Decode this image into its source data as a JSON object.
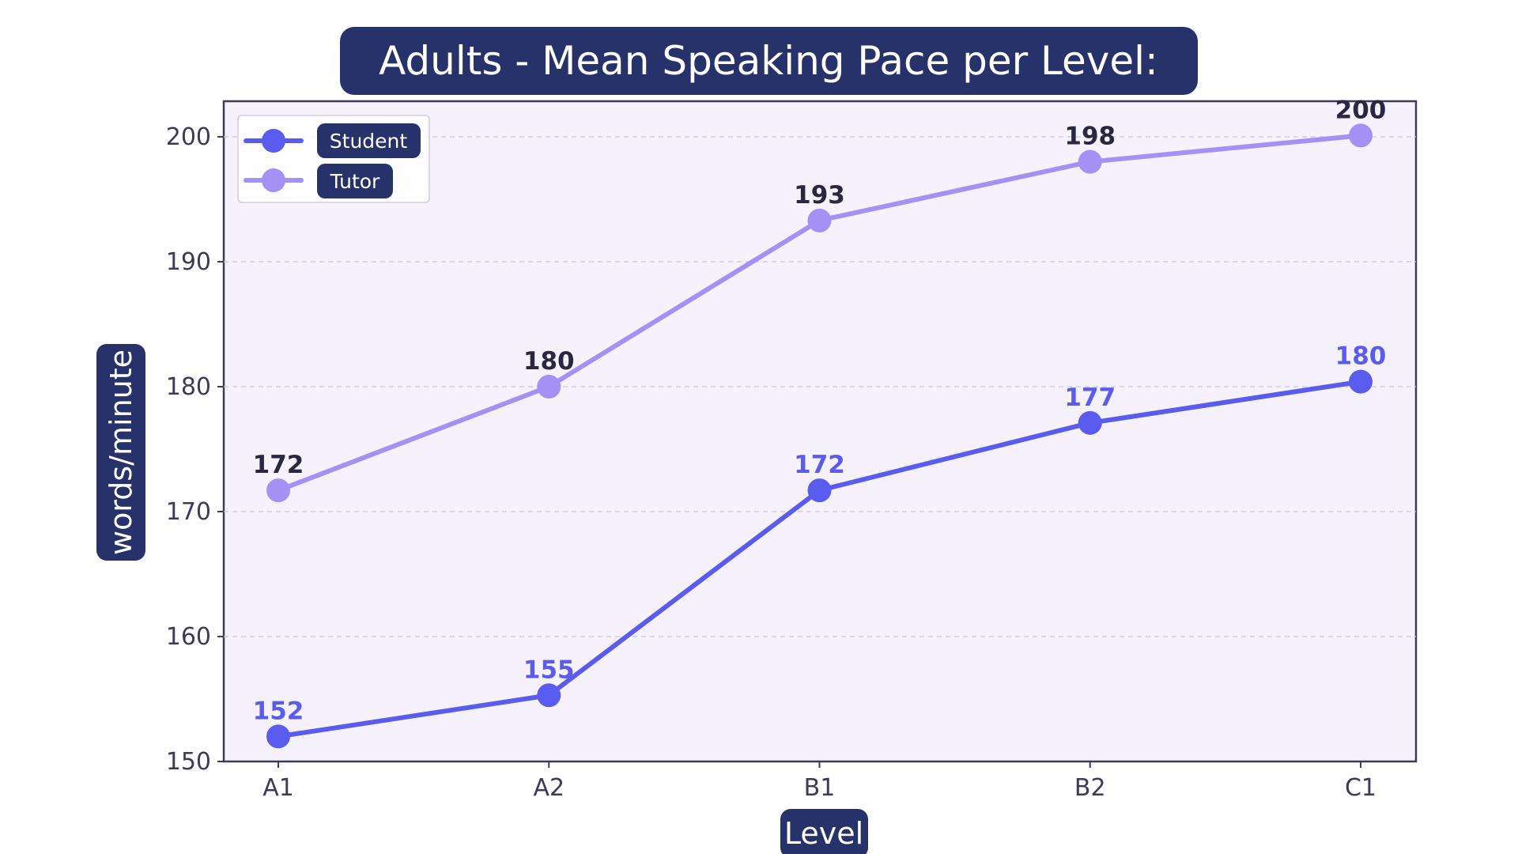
{
  "chart_data": {
    "type": "line",
    "title": "Adults - Mean Speaking Pace per Level:",
    "xlabel": "Level",
    "ylabel": "words/minute",
    "categories": [
      "A1",
      "A2",
      "B1",
      "B2",
      "C1"
    ],
    "ylim": [
      150,
      201
    ],
    "yticks": [
      150,
      160,
      170,
      180,
      190,
      200
    ],
    "grid": true,
    "legend_position": "top-left",
    "series": [
      {
        "name": "Student",
        "values": [
          152,
          155.3,
          171.7,
          177.1,
          180.4
        ],
        "labels": [
          "152",
          "155",
          "172",
          "177",
          "180"
        ],
        "color": "#5a5cf0"
      },
      {
        "name": "Tutor",
        "values": [
          171.7,
          180,
          193.3,
          198,
          200.1
        ],
        "labels": [
          "172",
          "180",
          "193",
          "198",
          "200"
        ],
        "color": "#a391f5"
      }
    ],
    "colors": {
      "badge": "#27316a",
      "plot_background": "#f6f2fd",
      "axes": "#3d3a5c",
      "tutor_label": "#2a2840"
    }
  }
}
